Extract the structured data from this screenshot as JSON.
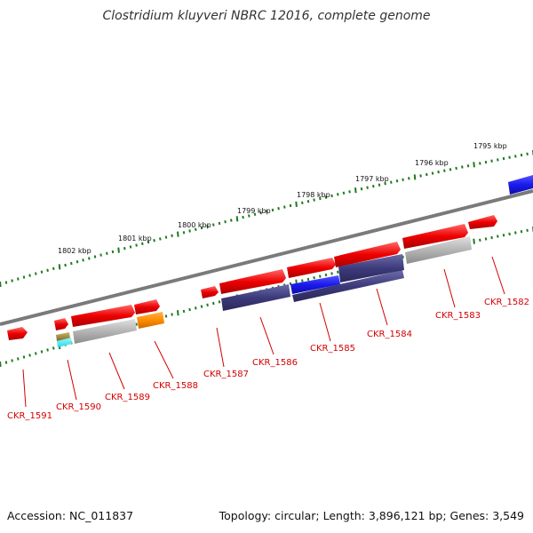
{
  "title": "Clostridium kluyveri NBRC 12016, complete genome",
  "footer": {
    "accession": "Accession: NC_011837",
    "summary": "Topology: circular; Length: 3,896,121 bp; Genes: 3,549"
  },
  "colors": {
    "backbone": "#7a7a7a",
    "tick": "#1f7a1f",
    "label": "#d40000",
    "gene_forward": "#ee0000",
    "cds_purple": "#3d3a7c",
    "cds_grey": "#b4b4b4",
    "cds_blue": "#1a1aee",
    "cds_orange": "#ff8c00",
    "cds_cyan": "#22ddee",
    "cds_olive": "#9c8a3c"
  },
  "scale": {
    "tick_labels": [
      "1802 kbp",
      "1801 kbp",
      "1800 kbp",
      "1799 kbp",
      "1798 kbp",
      "1797 kbp",
      "1796 kbp",
      "1795 kbp"
    ]
  },
  "genes": [
    {
      "label": "CKR_1591"
    },
    {
      "label": "CKR_1590"
    },
    {
      "label": "CKR_1589"
    },
    {
      "label": "CKR_1588"
    },
    {
      "label": "CKR_1587"
    },
    {
      "label": "CKR_1586"
    },
    {
      "label": "CKR_1585"
    },
    {
      "label": "CKR_1584"
    },
    {
      "label": "CKR_1583"
    },
    {
      "label": "CKR_1582"
    }
  ]
}
